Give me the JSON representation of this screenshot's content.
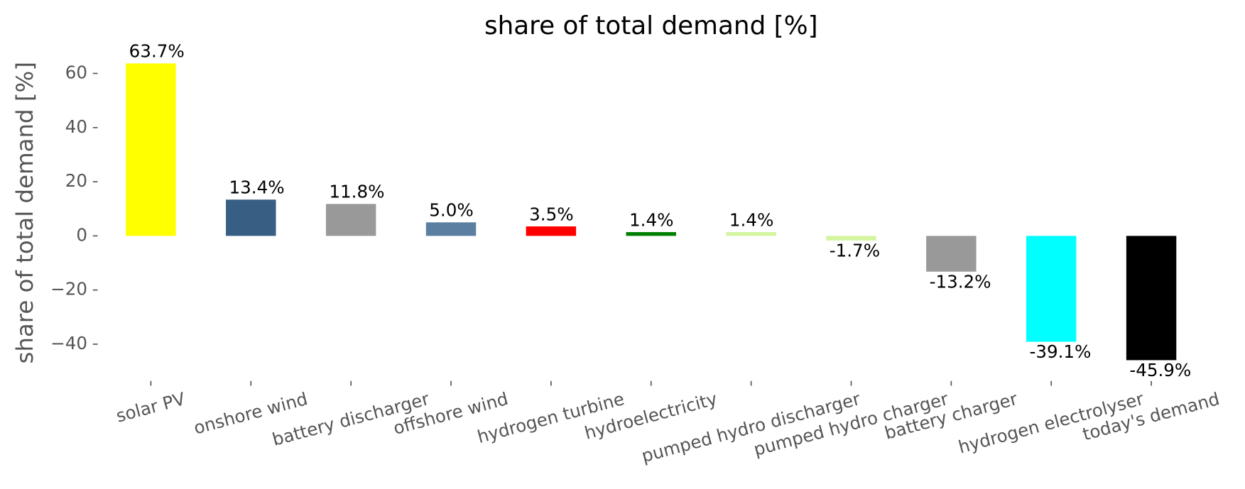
{
  "chart_data": {
    "type": "bar",
    "title": "share of total demand [%]",
    "ylabel": "share of total demand [%]",
    "categories": [
      "solar PV",
      "onshore wind",
      "battery discharger",
      "offshore wind",
      "hydrogen turbine",
      "hydroelectricity",
      "pumped hydro discharger",
      "pumped hydro charger",
      "battery charger",
      "hydrogen electrolyser",
      "today's demand"
    ],
    "values": [
      63.7,
      13.4,
      11.8,
      5.0,
      3.5,
      1.4,
      1.4,
      -1.7,
      -13.2,
      -39.1,
      -45.9
    ],
    "value_labels": [
      "63.7%",
      "13.4%",
      "11.8%",
      "5.0%",
      "3.5%",
      "1.4%",
      "1.4%",
      "-1.7%",
      "-13.2%",
      "-39.1%",
      "-45.9%"
    ],
    "colors": [
      "#ffff00",
      "#375e83",
      "#999999",
      "#5a7fa1",
      "#ff0000",
      "#008000",
      "#d4f5a0",
      "#d4f5a0",
      "#999999",
      "#00ffff",
      "#000000"
    ],
    "ylim": [
      -53,
      69.5
    ],
    "yticks": [
      {
        "value": -40,
        "label": "−40"
      },
      {
        "value": -20,
        "label": "−20"
      },
      0,
      20,
      40,
      60
    ],
    "grid": false
  }
}
